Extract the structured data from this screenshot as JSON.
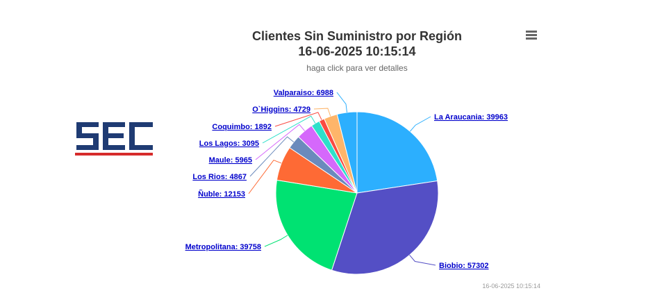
{
  "title": "Clientes Sin Suministro por Región",
  "date_line": "16-06-2025 10:15:14",
  "subtitle": "haga click para ver detalles",
  "credits": "16-06-2025 10:15:14",
  "logo_text": "SEC",
  "menu_icon": "hamburger-menu-icon",
  "colors": {
    "logo_blue": "#1f3b73",
    "logo_red": "#d62b2b",
    "label_link": "#0000cc"
  },
  "chart_data": {
    "type": "pie",
    "title": "Clientes Sin Suministro por Región",
    "subtitle": "haga click para ver detalles",
    "slices": [
      {
        "name": "La Araucanía",
        "label": "La Araucania: 39963",
        "value": 39963,
        "color": "#2caffe"
      },
      {
        "name": "Biobío",
        "label": "Biobio: 57302",
        "value": 57302,
        "color": "#544fc5"
      },
      {
        "name": "Metropolitana",
        "label": "Metropolitana: 39758",
        "value": 39758,
        "color": "#00e272"
      },
      {
        "name": "Ñuble",
        "label": "Ñuble: 12153",
        "value": 12153,
        "color": "#fe6a35"
      },
      {
        "name": "Los Ríos",
        "label": "Los Rios: 4867",
        "value": 4867,
        "color": "#6b8abc"
      },
      {
        "name": "Maule",
        "label": "Maule: 5965",
        "value": 5965,
        "color": "#d568fb"
      },
      {
        "name": "Los Lagos",
        "label": "Los Lagos: 3095",
        "value": 3095,
        "color": "#2ee0ca"
      },
      {
        "name": "Coquimbo",
        "label": "Coquimbo: 1892",
        "value": 1892,
        "color": "#fa4b42"
      },
      {
        "name": "O'Higgins",
        "label": "O`Higgins: 4729",
        "value": 4729,
        "color": "#feb56a"
      },
      {
        "name": "Valparaíso",
        "label": "Valparaiso: 6988",
        "value": 6988,
        "color": "#2caffe"
      }
    ]
  }
}
